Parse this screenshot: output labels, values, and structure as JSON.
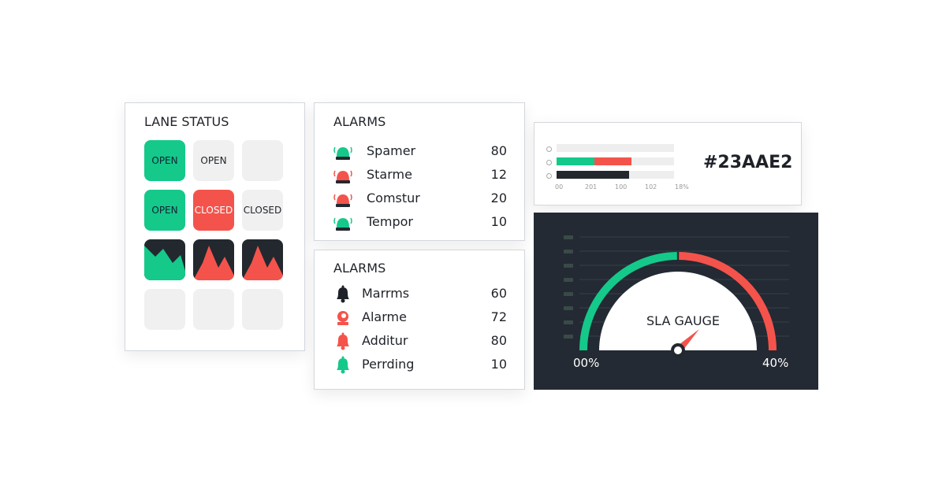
{
  "lane_status": {
    "title": "LANE STATUS",
    "cells": [
      {
        "label": "OPEN",
        "state": "open"
      },
      {
        "label": "OPEN",
        "state": "neutral"
      },
      {
        "label": "",
        "state": "empty"
      },
      {
        "label": "OPEN",
        "state": "open"
      },
      {
        "label": "CLOSED",
        "state": "closed"
      },
      {
        "label": "CLOSED",
        "state": "neutral"
      },
      {
        "label": "",
        "state": "chart-green"
      },
      {
        "label": "",
        "state": "chart-red"
      },
      {
        "label": "",
        "state": "chart-red"
      },
      {
        "label": "",
        "state": "empty"
      },
      {
        "label": "",
        "state": "empty"
      },
      {
        "label": "",
        "state": "empty"
      }
    ]
  },
  "alarms_1": {
    "title": "ALARMS",
    "items": [
      {
        "icon": "siren-icon",
        "color": "#14c98a",
        "label": "Spamer",
        "value": "80"
      },
      {
        "icon": "siren-icon",
        "color": "#f4534b",
        "label": "Starme",
        "value": "12"
      },
      {
        "icon": "siren-icon",
        "color": "#f4534b",
        "label": "Comstur",
        "value": "20"
      },
      {
        "icon": "siren-icon",
        "color": "#14c98a",
        "label": "Tempor",
        "value": "10"
      }
    ]
  },
  "alarms_2": {
    "title": "ALARMS",
    "items": [
      {
        "icon": "bell-icon",
        "color": "#1e2228",
        "label": "Marrms",
        "value": "60"
      },
      {
        "icon": "alarm-clock-icon",
        "color": "#f4534b",
        "label": "Alarme",
        "value": "72"
      },
      {
        "icon": "bell-icon",
        "color": "#f4534b",
        "label": "Additur",
        "value": "80"
      },
      {
        "icon": "bell-icon",
        "color": "#14c98a",
        "label": "Perrding",
        "value": "10"
      }
    ]
  },
  "bars": {
    "hex_label": "#23AAE2",
    "ticks": [
      "00",
      "201",
      "100",
      "102",
      "18%"
    ],
    "rows": [
      {
        "segments": []
      },
      {
        "segments": [
          {
            "color": "#14c98a",
            "fraction": 0.32
          },
          {
            "color": "#f4534b",
            "fraction": 0.32
          }
        ]
      },
      {
        "segments": [
          {
            "color": "#23282f",
            "fraction": 0.62
          }
        ]
      }
    ]
  },
  "gauge": {
    "title": "SLA GAUGE",
    "min_label": "00%",
    "max_label": "40%",
    "needle_fraction": 0.75,
    "green": "#14c98a",
    "red": "#f4534b"
  }
}
